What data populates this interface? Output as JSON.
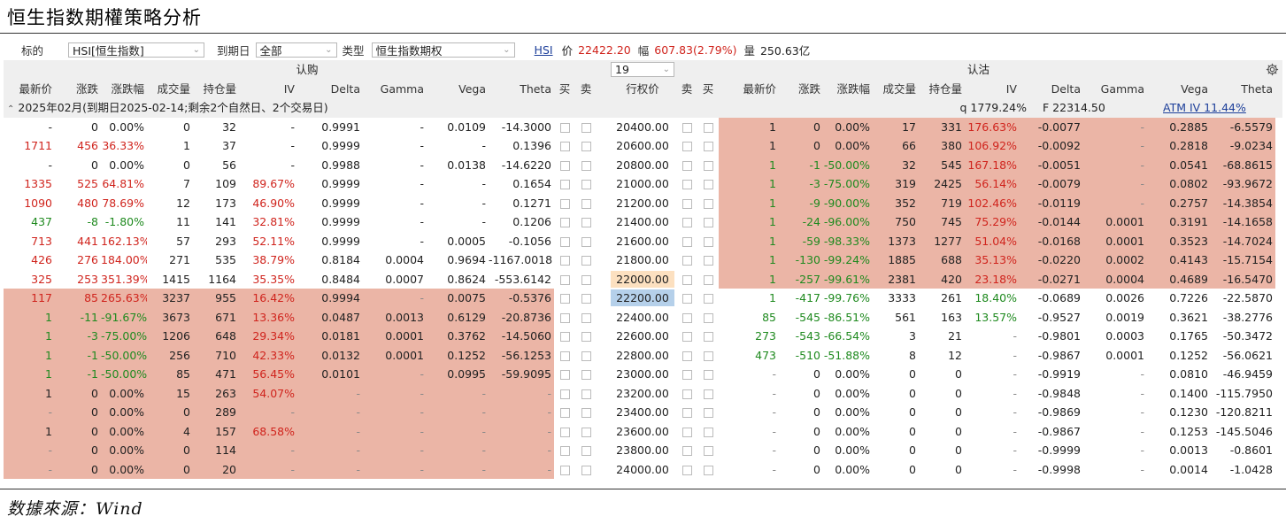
{
  "title": "恒生指数期權策略分析",
  "source": "数據來源：Wind",
  "toolbar": {
    "underlying_label": "标的",
    "underlying_value": "HSI[恒生指数]",
    "expiry_label": "到期日",
    "expiry_value": "全部",
    "type_label": "类型",
    "type_value": "恒生指数期权",
    "symbol": "HSI",
    "price_label": "价",
    "price_value": "22422.20",
    "change_label": "幅",
    "change_value": "607.83(2.79%)",
    "volume_label": "量",
    "volume_value": "250.63亿"
  },
  "band": {
    "call_label": "认购",
    "put_label": "认沽",
    "strike_count": "19"
  },
  "headers": {
    "call": [
      "最新价",
      "涨跌",
      "涨跌幅",
      "成交量",
      "持仓量",
      "IV",
      "Delta",
      "Gamma",
      "Vega",
      "Theta",
      "买",
      "卖"
    ],
    "strike": "行权价",
    "put": [
      "卖",
      "买",
      "最新价",
      "涨跌",
      "涨跌幅",
      "成交量",
      "持仓量",
      "IV",
      "Delta",
      "Gamma",
      "Vega",
      "Theta"
    ]
  },
  "section": {
    "label": "2025年02月(到期日2025-02-14;剩余2个自然日、2个交易日)",
    "q": "q  1779.24%",
    "f": "F  22314.50",
    "atm_iv": "ATM IV 11.44%"
  },
  "colors": {
    "up": "#d0241d",
    "down": "#1f8a1f",
    "itm": "#ebb5a6",
    "atm_strike": "#b5d0ea",
    "near_strike": "#fce0c0"
  },
  "rows": [
    {
      "strike": "20400.00",
      "call": [
        "-",
        "0",
        "0.00%",
        "0",
        "32",
        "-",
        "0.9991",
        "-",
        "0.0109",
        "-14.3000"
      ],
      "put": [
        "1",
        "0",
        "0.00%",
        "17",
        "331",
        "176.63%",
        "-0.0077",
        "-",
        "0.2885",
        "-6.5579"
      ]
    },
    {
      "strike": "20600.00",
      "call": [
        "1711",
        "456",
        "36.33%",
        "1",
        "37",
        "-",
        "0.9999",
        "-",
        "-",
        "0.1396"
      ],
      "put": [
        "1",
        "0",
        "0.00%",
        "66",
        "380",
        "106.92%",
        "-0.0092",
        "-",
        "0.2818",
        "-9.0234"
      ]
    },
    {
      "strike": "20800.00",
      "call": [
        "-",
        "0",
        "0.00%",
        "0",
        "56",
        "-",
        "0.9988",
        "-",
        "0.0138",
        "-14.6220"
      ],
      "put": [
        "1",
        "-1",
        "-50.00%",
        "32",
        "545",
        "167.18%",
        "-0.0051",
        "-",
        "0.0541",
        "-68.8615"
      ]
    },
    {
      "strike": "21000.00",
      "call": [
        "1335",
        "525",
        "64.81%",
        "7",
        "109",
        "89.67%",
        "0.9999",
        "-",
        "-",
        "0.1654"
      ],
      "put": [
        "1",
        "-3",
        "-75.00%",
        "319",
        "2425",
        "56.14%",
        "-0.0079",
        "-",
        "0.0802",
        "-93.9672"
      ]
    },
    {
      "strike": "21200.00",
      "call": [
        "1090",
        "480",
        "78.69%",
        "12",
        "173",
        "46.90%",
        "0.9999",
        "-",
        "-",
        "0.1271"
      ],
      "put": [
        "1",
        "-9",
        "-90.00%",
        "352",
        "719",
        "102.46%",
        "-0.0119",
        "-",
        "0.2757",
        "-14.3854"
      ]
    },
    {
      "strike": "21400.00",
      "call": [
        "437",
        "-8",
        "-1.80%",
        "11",
        "141",
        "32.81%",
        "0.9999",
        "-",
        "-",
        "0.1206"
      ],
      "put": [
        "1",
        "-24",
        "-96.00%",
        "750",
        "745",
        "75.29%",
        "-0.0144",
        "0.0001",
        "0.3191",
        "-14.1658"
      ]
    },
    {
      "strike": "21600.00",
      "call": [
        "713",
        "441",
        "162.13%",
        "57",
        "293",
        "52.11%",
        "0.9999",
        "-",
        "0.0005",
        "-0.1056"
      ],
      "put": [
        "1",
        "-59",
        "-98.33%",
        "1373",
        "1277",
        "51.04%",
        "-0.0168",
        "0.0001",
        "0.3523",
        "-14.7024"
      ]
    },
    {
      "strike": "21800.00",
      "call": [
        "426",
        "276",
        "184.00%",
        "271",
        "535",
        "38.79%",
        "0.8184",
        "0.0004",
        "0.9694",
        "-1167.0018"
      ],
      "put": [
        "1",
        "-130",
        "-99.24%",
        "1885",
        "688",
        "35.13%",
        "-0.0220",
        "0.0002",
        "0.4143",
        "-15.7154"
      ]
    },
    {
      "strike": "22000.00",
      "call": [
        "325",
        "253",
        "351.39%",
        "1415",
        "1164",
        "35.35%",
        "0.8484",
        "0.0007",
        "0.8624",
        "-553.6142"
      ],
      "put": [
        "1",
        "-257",
        "-99.61%",
        "2381",
        "420",
        "23.18%",
        "-0.0271",
        "0.0004",
        "0.4689",
        "-16.5470"
      ]
    },
    {
      "strike": "22200.00",
      "call": [
        "117",
        "85",
        "265.63%",
        "3237",
        "955",
        "16.42%",
        "0.9994",
        "-",
        "0.0075",
        "-0.5376"
      ],
      "put": [
        "1",
        "-417",
        "-99.76%",
        "3333",
        "261",
        "18.40%",
        "-0.0689",
        "0.0026",
        "0.7226",
        "-22.5870"
      ]
    },
    {
      "strike": "22400.00",
      "call": [
        "1",
        "-11",
        "-91.67%",
        "3673",
        "671",
        "13.36%",
        "0.0487",
        "0.0013",
        "0.6129",
        "-20.8736"
      ],
      "put": [
        "85",
        "-545",
        "-86.51%",
        "561",
        "163",
        "13.57%",
        "-0.9527",
        "0.0019",
        "0.3621",
        "-38.2776"
      ]
    },
    {
      "strike": "22600.00",
      "call": [
        "1",
        "-3",
        "-75.00%",
        "1206",
        "648",
        "29.34%",
        "0.0181",
        "0.0001",
        "0.3762",
        "-14.5060"
      ],
      "put": [
        "273",
        "-543",
        "-66.54%",
        "3",
        "21",
        "-",
        "-0.9801",
        "0.0003",
        "0.1765",
        "-50.3472"
      ]
    },
    {
      "strike": "22800.00",
      "call": [
        "1",
        "-1",
        "-50.00%",
        "256",
        "710",
        "42.33%",
        "0.0132",
        "0.0001",
        "0.1252",
        "-56.1253"
      ],
      "put": [
        "473",
        "-510",
        "-51.88%",
        "8",
        "12",
        "-",
        "-0.9867",
        "0.0001",
        "0.1252",
        "-56.0621"
      ]
    },
    {
      "strike": "23000.00",
      "call": [
        "1",
        "-1",
        "-50.00%",
        "85",
        "471",
        "56.45%",
        "0.0101",
        "-",
        "0.0995",
        "-59.9095"
      ],
      "put": [
        "-",
        "0",
        "0.00%",
        "0",
        "0",
        "-",
        "-0.9919",
        "-",
        "0.0810",
        "-46.9459"
      ]
    },
    {
      "strike": "23200.00",
      "call": [
        "1",
        "0",
        "0.00%",
        "15",
        "263",
        "54.07%",
        "-",
        "-",
        "-",
        "-"
      ],
      "put": [
        "-",
        "0",
        "0.00%",
        "0",
        "0",
        "-",
        "-0.9848",
        "-",
        "0.1400",
        "-115.7950"
      ]
    },
    {
      "strike": "23400.00",
      "call": [
        "-",
        "0",
        "0.00%",
        "0",
        "289",
        "-",
        "-",
        "-",
        "-",
        "-"
      ],
      "put": [
        "-",
        "0",
        "0.00%",
        "0",
        "0",
        "-",
        "-0.9869",
        "-",
        "0.1230",
        "-120.8211"
      ]
    },
    {
      "strike": "23600.00",
      "call": [
        "1",
        "0",
        "0.00%",
        "4",
        "157",
        "68.58%",
        "-",
        "-",
        "-",
        "-"
      ],
      "put": [
        "-",
        "0",
        "0.00%",
        "0",
        "0",
        "-",
        "-0.9867",
        "-",
        "0.1253",
        "-145.5046"
      ]
    },
    {
      "strike": "23800.00",
      "call": [
        "-",
        "0",
        "0.00%",
        "0",
        "114",
        "-",
        "-",
        "-",
        "-",
        "-"
      ],
      "put": [
        "-",
        "0",
        "0.00%",
        "0",
        "0",
        "-",
        "-0.9999",
        "-",
        "0.0013",
        "-0.8601"
      ]
    },
    {
      "strike": "24000.00",
      "call": [
        "-",
        "0",
        "0.00%",
        "0",
        "20",
        "-",
        "-",
        "-",
        "-",
        "-"
      ],
      "put": [
        "-",
        "0",
        "0.00%",
        "0",
        "0",
        "-",
        "-0.9998",
        "-",
        "0.0014",
        "-1.0428"
      ]
    }
  ]
}
